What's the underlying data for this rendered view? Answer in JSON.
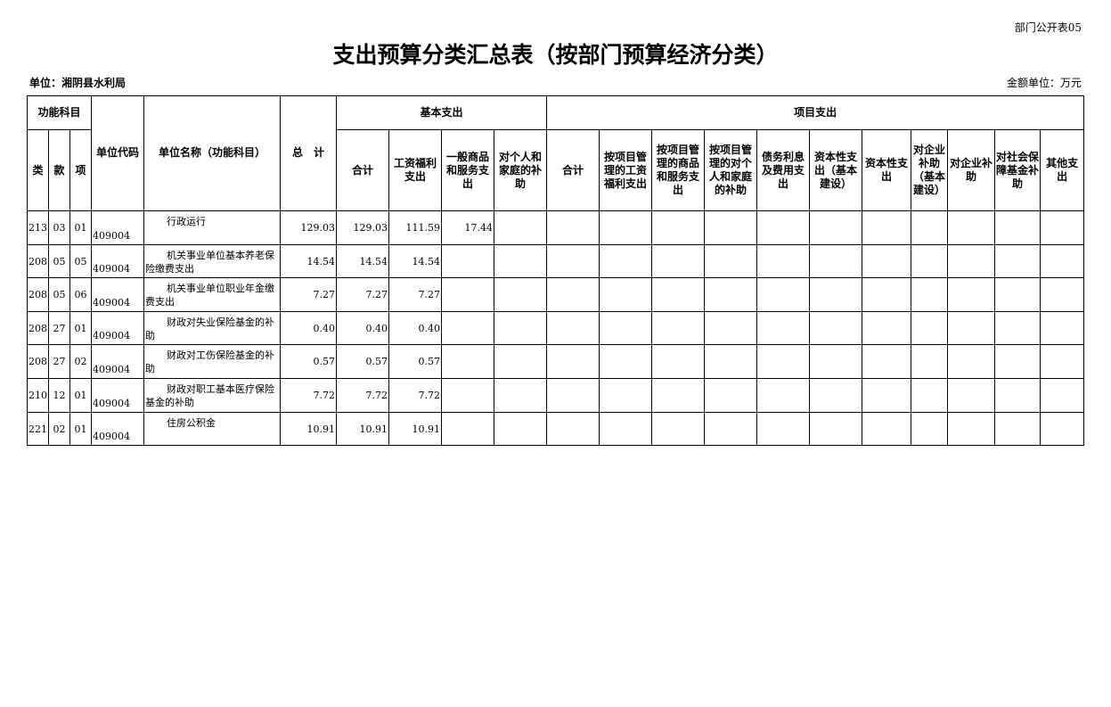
{
  "form_code": "部门公开表05",
  "title": "支出预算分类汇总表（按部门预算经济分类）",
  "unit": "单位：湘阴县水利局",
  "money_unit": "金额单位：万元",
  "headers": {
    "func": "功能科目",
    "lei": "类",
    "kuan": "款",
    "xiang": "项",
    "unit_code": "单位代码",
    "unit_name": "单位名称（功能科目）",
    "total": "总　计",
    "basic": "基本支出",
    "project": "项目支出",
    "basic_cols": [
      "合计",
      "工资福利支出",
      "一般商品和服务支出",
      "对个人和家庭的补助"
    ],
    "project_cols": [
      "合计",
      "按项目管理的工资福利支出",
      "按项目管理的商品和服务支出",
      "按项目管理的对个人和家庭的补助",
      "债务利息及费用支出",
      "资本性支出（基本建设）",
      "资本性支出",
      "对企业补助（基本建设）",
      "对企业补助",
      "对社会保障基金补助",
      "其他支出"
    ]
  },
  "rows": [
    {
      "lei": "213",
      "kuan": "03",
      "xiang": "01",
      "code": "409004",
      "name": "行政运行",
      "total": "129.03",
      "b_total": "129.03",
      "b_wage": "111.59",
      "b_goods": "17.44"
    },
    {
      "lei": "208",
      "kuan": "05",
      "xiang": "05",
      "code": "409004",
      "name": "机关事业单位基本养老保险缴费支出",
      "total": "14.54",
      "b_total": "14.54",
      "b_wage": "14.54",
      "b_goods": ""
    },
    {
      "lei": "208",
      "kuan": "05",
      "xiang": "06",
      "code": "409004",
      "name": "机关事业单位职业年金缴费支出",
      "total": "7.27",
      "b_total": "7.27",
      "b_wage": "7.27",
      "b_goods": ""
    },
    {
      "lei": "208",
      "kuan": "27",
      "xiang": "01",
      "code": "409004",
      "name": "财政对失业保险基金的补助",
      "total": "0.40",
      "b_total": "0.40",
      "b_wage": "0.40",
      "b_goods": ""
    },
    {
      "lei": "208",
      "kuan": "27",
      "xiang": "02",
      "code": "409004",
      "name": "财政对工伤保险基金的补助",
      "total": "0.57",
      "b_total": "0.57",
      "b_wage": "0.57",
      "b_goods": ""
    },
    {
      "lei": "210",
      "kuan": "12",
      "xiang": "01",
      "code": "409004",
      "name": "财政对职工基本医疗保险基金的补助",
      "total": "7.72",
      "b_total": "7.72",
      "b_wage": "7.72",
      "b_goods": ""
    },
    {
      "lei": "221",
      "kuan": "02",
      "xiang": "01",
      "code": "409004",
      "name": "住房公积金",
      "total": "10.91",
      "b_total": "10.91",
      "b_wage": "10.91",
      "b_goods": ""
    }
  ]
}
